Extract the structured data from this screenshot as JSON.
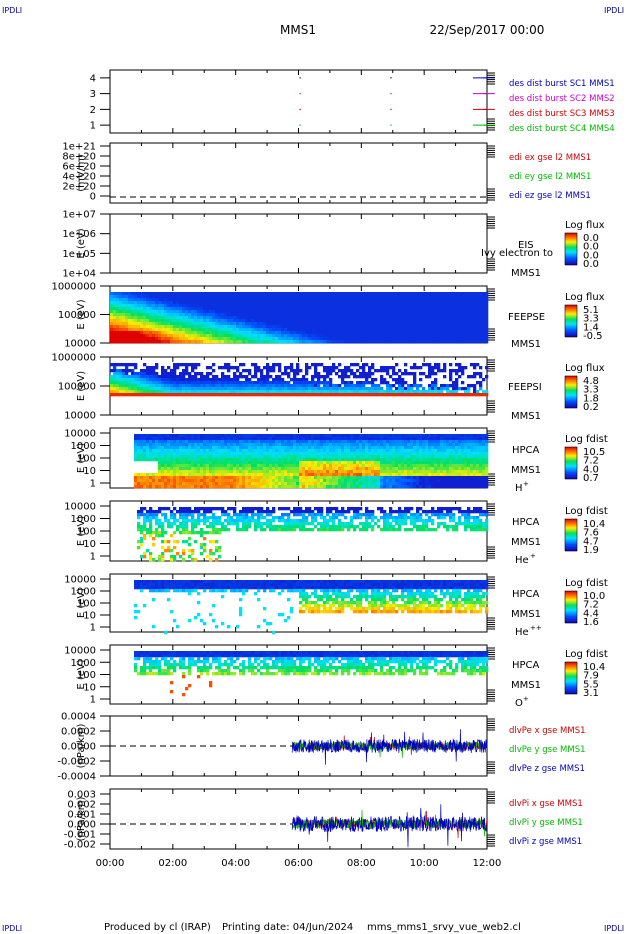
{
  "header": {
    "corner_label": "IPDLI",
    "mission": "MMS1",
    "date": "22/Sep/2017 00:00"
  },
  "footer": {
    "produced_by": "Produced by cl (IRAP)",
    "printing_date": "Printing date: 04/Jun/2024",
    "filename": "mms_mms1_srvy_vue_web2.cl"
  },
  "colors": {
    "blue": "#0000c0",
    "red": "#d00000",
    "magenta": "#cc00cc",
    "green": "#00bb00"
  },
  "chart_data": [
    {
      "type": "line",
      "panel": "burst",
      "ylim": [
        0.5,
        4.5
      ],
      "yticks": [
        "4",
        "3",
        "2",
        "1"
      ],
      "series": [
        {
          "name": "des dist burst SC1 MMS1",
          "color": "#0000c0",
          "level": 4
        },
        {
          "name": "des dist burst SC2 MMS2",
          "color": "#cc00cc",
          "level": 3
        },
        {
          "name": "des dist burst SC3 MMS3",
          "color": "#d00000",
          "level": 2
        },
        {
          "name": "des dist burst SC4 MMS4",
          "color": "#00bb00",
          "level": 1
        }
      ],
      "burst_times_hours": [
        6.03,
        8.92,
        11.55
      ]
    },
    {
      "type": "line",
      "panel": "edi",
      "ylabel": "(mV/m)",
      "yticks": [
        "1e+21",
        "8e+20",
        "6e+20",
        "4e+20",
        "2e+20",
        "0"
      ],
      "series": [
        {
          "name": "edi ex gse l2 MMS1",
          "color": "#d00000"
        },
        {
          "name": "edi ey gse l2 MMS1",
          "color": "#00bb00"
        },
        {
          "name": "edi ez gse l2 MMS1",
          "color": "#0000c0"
        }
      ]
    },
    {
      "type": "heatmap",
      "panel": "eis",
      "ylabel": "E (eV)",
      "yticks": [
        "1e+07",
        "1e+06",
        "1e+05",
        "1e+04"
      ],
      "instrument": "EIS",
      "sub_label": "MMS1",
      "overlay_text": "Ivy electron to",
      "colorbar_title": "Log flux",
      "colorbar_ticks": [
        "0.0",
        "0.0",
        "0.0",
        "0.0"
      ]
    },
    {
      "type": "heatmap",
      "panel": "feepse",
      "ylabel": "E (eV)",
      "yticks": [
        "1000000",
        "100000",
        "10000"
      ],
      "instrument": "FEEPSE",
      "sub_label": "MMS1",
      "colorbar_title": "Log flux",
      "colorbar_ticks": [
        "5.1",
        "3.3",
        "1.4",
        "-0.5"
      ]
    },
    {
      "type": "heatmap",
      "panel": "feepsi",
      "ylabel": "E (eV)",
      "yticks": [
        "1000000",
        "100000",
        "10000"
      ],
      "instrument": "FEEPSI",
      "sub_label": "MMS1",
      "colorbar_title": "Log flux",
      "colorbar_ticks": [
        "4.8",
        "3.3",
        "1.8",
        "0.2"
      ]
    },
    {
      "type": "heatmap",
      "panel": "hpca-h",
      "ylabel": "E (eV)",
      "yticks": [
        "10000",
        "1000",
        "100",
        "10",
        "1"
      ],
      "instrument": "HPCA",
      "sub_label": "MMS1",
      "species": "H",
      "species_charge": "+",
      "colorbar_title": "Log fdist",
      "colorbar_ticks": [
        "10.5",
        "7.2",
        "4.0",
        "0.7"
      ]
    },
    {
      "type": "heatmap",
      "panel": "hpca-he",
      "ylabel": "E (eV)",
      "yticks": [
        "10000",
        "1000",
        "100",
        "10",
        "1"
      ],
      "instrument": "HPCA",
      "sub_label": "MMS1",
      "species": "He",
      "species_charge": "+",
      "colorbar_title": "Log fdist",
      "colorbar_ticks": [
        "10.4",
        "7.6",
        "4.7",
        "1.9"
      ]
    },
    {
      "type": "heatmap",
      "panel": "hpca-hepp",
      "ylabel": "E (eV)",
      "yticks": [
        "10000",
        "1000",
        "100",
        "10",
        "1"
      ],
      "instrument": "HPCA",
      "sub_label": "MMS1",
      "species": "He",
      "species_charge": "++",
      "colorbar_title": "Log fdist",
      "colorbar_ticks": [
        "10.0",
        "7.2",
        "4.4",
        "1.6"
      ]
    },
    {
      "type": "heatmap",
      "panel": "hpca-o",
      "ylabel": "E (eV)",
      "yticks": [
        "10000",
        "1000",
        "100",
        "10",
        "1"
      ],
      "instrument": "HPCA",
      "sub_label": "MMS1",
      "species": "O",
      "species_charge": "+",
      "colorbar_title": "Log fdist",
      "colorbar_ticks": [
        "10.4",
        "7.9",
        "5.5",
        "3.1"
      ]
    },
    {
      "type": "line",
      "panel": "dpe",
      "ylabel": "(nPa/km)",
      "ylim": [
        -0.0004,
        0.0004
      ],
      "yticks": [
        "0.0004",
        "0.0002",
        "0.0000",
        "-0.0002",
        "-0.0004"
      ],
      "data_start_hours": 5.8,
      "amplitude": 7e-05,
      "series": [
        {
          "name": "dlvPe x gse MMS1",
          "color": "#d00000"
        },
        {
          "name": "dlvPe y gse MMS1",
          "color": "#00bb00"
        },
        {
          "name": "dlvPe z gse MMS1",
          "color": "#0000c0"
        }
      ]
    },
    {
      "type": "line",
      "panel": "dpi",
      "ylabel": "(nPa/km)",
      "ylim": [
        -0.0025,
        0.0035
      ],
      "yticks": [
        "0.003",
        "0.002",
        "0.001",
        "0.000",
        "-0.001",
        "-0.002"
      ],
      "data_start_hours": 5.8,
      "amplitude": 0.0006,
      "series": [
        {
          "name": "dlvPi x gse MMS1",
          "color": "#d00000"
        },
        {
          "name": "dlvPi y gse MMS1",
          "color": "#00bb00"
        },
        {
          "name": "dlvPi z gse MMS1",
          "color": "#0000c0"
        }
      ]
    }
  ],
  "x_axis": {
    "xlim": [
      0,
      12
    ],
    "tick_labels": [
      "00:00",
      "02:00",
      "04:00",
      "06:00",
      "08:00",
      "10:00",
      "12:00"
    ]
  }
}
